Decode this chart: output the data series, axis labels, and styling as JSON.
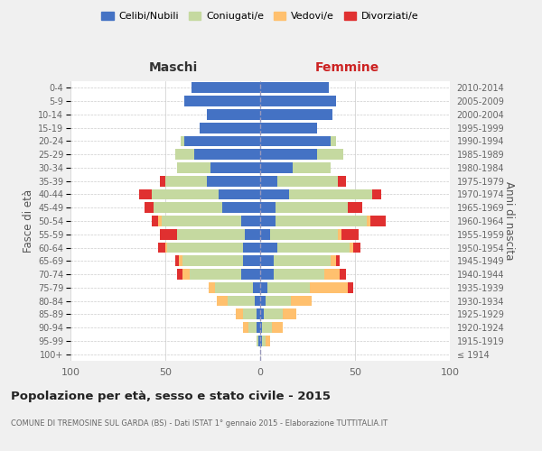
{
  "age_groups": [
    "100+",
    "95-99",
    "90-94",
    "85-89",
    "80-84",
    "75-79",
    "70-74",
    "65-69",
    "60-64",
    "55-59",
    "50-54",
    "45-49",
    "40-44",
    "35-39",
    "30-34",
    "25-29",
    "20-24",
    "15-19",
    "10-14",
    "5-9",
    "0-4"
  ],
  "birth_years": [
    "≤ 1914",
    "1915-1919",
    "1920-1924",
    "1925-1929",
    "1930-1934",
    "1935-1939",
    "1940-1944",
    "1945-1949",
    "1950-1954",
    "1955-1959",
    "1960-1964",
    "1965-1969",
    "1970-1974",
    "1975-1979",
    "1980-1984",
    "1985-1989",
    "1990-1994",
    "1995-1999",
    "2000-2004",
    "2005-2009",
    "2010-2014"
  ],
  "colors": {
    "celibi": "#4472c4",
    "coniugati": "#c5d9a0",
    "vedovi": "#ffc06e",
    "divorziati": "#e03030"
  },
  "maschi_celibi": [
    0,
    1,
    2,
    2,
    3,
    4,
    10,
    9,
    9,
    8,
    10,
    20,
    22,
    28,
    26,
    35,
    40,
    32,
    28,
    40,
    36
  ],
  "maschi_coniugati": [
    0,
    1,
    4,
    7,
    14,
    20,
    27,
    32,
    40,
    36,
    42,
    36,
    35,
    22,
    18,
    10,
    2,
    0,
    0,
    0,
    0
  ],
  "maschi_vedovi": [
    0,
    0,
    3,
    4,
    6,
    3,
    4,
    2,
    1,
    0,
    2,
    0,
    0,
    0,
    0,
    0,
    0,
    0,
    0,
    0,
    0
  ],
  "maschi_divorziati": [
    0,
    0,
    0,
    0,
    0,
    0,
    3,
    2,
    4,
    9,
    3,
    5,
    7,
    3,
    0,
    0,
    0,
    0,
    0,
    0,
    0
  ],
  "femmine_celibi": [
    0,
    1,
    1,
    2,
    3,
    4,
    7,
    7,
    9,
    5,
    8,
    8,
    15,
    9,
    17,
    30,
    37,
    30,
    38,
    40,
    36
  ],
  "femmine_coniugati": [
    0,
    2,
    5,
    10,
    13,
    22,
    27,
    30,
    38,
    36,
    48,
    38,
    44,
    32,
    20,
    14,
    3,
    0,
    0,
    0,
    0
  ],
  "femmine_vedovi": [
    0,
    2,
    6,
    7,
    11,
    20,
    8,
    3,
    2,
    2,
    2,
    0,
    0,
    0,
    0,
    0,
    0,
    0,
    0,
    0,
    0
  ],
  "femmine_divorziati": [
    0,
    0,
    0,
    0,
    0,
    3,
    3,
    2,
    4,
    9,
    8,
    8,
    5,
    4,
    0,
    0,
    0,
    0,
    0,
    0,
    0
  ],
  "xlim": 100,
  "title": "Popolazione per età, sesso e stato civile - 2015",
  "subtitle": "COMUNE DI TREMOSINE SUL GARDA (BS) - Dati ISTAT 1° gennaio 2015 - Elaborazione TUTTITALIA.IT",
  "ylabel_left": "Fasce di età",
  "ylabel_right": "Anni di nascita",
  "xlabel_maschi": "Maschi",
  "xlabel_femmine": "Femmine",
  "legend_labels": [
    "Celibi/Nubili",
    "Coniugati/e",
    "Vedovi/e",
    "Divorziati/e"
  ],
  "bg_color": "#f0f0f0",
  "plot_bg": "#ffffff"
}
